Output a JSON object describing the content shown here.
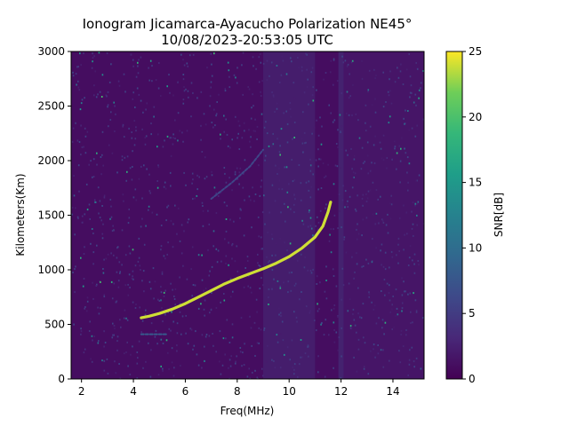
{
  "chart_data": {
    "type": "heatmap",
    "title_line1": "Ionogram Jicamarca-Ayacucho Polarization NE45°",
    "title_line2": "10/08/2023-20:53:05 UTC",
    "xlabel": "Freq(MHz)",
    "ylabel": "Kilometers(Km)",
    "colorbar_label": "SNR[dB]",
    "colormap": "viridis",
    "xlim": [
      1.6,
      15.2
    ],
    "ylim": [
      0,
      3000
    ],
    "clim": [
      0,
      25
    ],
    "x_ticks": [
      2,
      4,
      6,
      8,
      10,
      12,
      14
    ],
    "y_ticks": [
      0,
      500,
      1000,
      1500,
      2000,
      2500,
      3000
    ],
    "colorbar_ticks": [
      0,
      5,
      10,
      15,
      20,
      25
    ],
    "background_snr_db": 1,
    "grid": false,
    "traces": [
      {
        "description": "F-layer echo trace",
        "snr_db": 24,
        "points": [
          [
            4.3,
            560
          ],
          [
            4.6,
            575
          ],
          [
            5.0,
            600
          ],
          [
            5.5,
            640
          ],
          [
            6.0,
            690
          ],
          [
            6.5,
            750
          ],
          [
            7.0,
            810
          ],
          [
            7.5,
            870
          ],
          [
            8.0,
            920
          ],
          [
            8.5,
            965
          ],
          [
            9.0,
            1010
          ],
          [
            9.5,
            1060
          ],
          [
            10.0,
            1120
          ],
          [
            10.5,
            1200
          ],
          [
            11.0,
            1300
          ],
          [
            11.3,
            1400
          ],
          [
            11.5,
            1530
          ],
          [
            11.6,
            1620
          ]
        ]
      },
      {
        "description": "lower echo",
        "snr_db": 8,
        "points": [
          [
            4.3,
            410
          ],
          [
            4.8,
            410
          ],
          [
            5.3,
            410
          ]
        ]
      },
      {
        "description": "faint upper echo",
        "snr_db": 6,
        "points": [
          [
            7.0,
            1650
          ],
          [
            7.8,
            1800
          ],
          [
            8.5,
            1950
          ],
          [
            9.0,
            2100
          ]
        ]
      }
    ],
    "noise_bands": [
      {
        "x": [
          9.0,
          11.0
        ],
        "snr_db": 4
      },
      {
        "x": [
          11.9,
          12.1
        ],
        "snr_db": 5
      },
      {
        "x": [
          12.1,
          15.2
        ],
        "snr_db": 2.5
      }
    ]
  }
}
